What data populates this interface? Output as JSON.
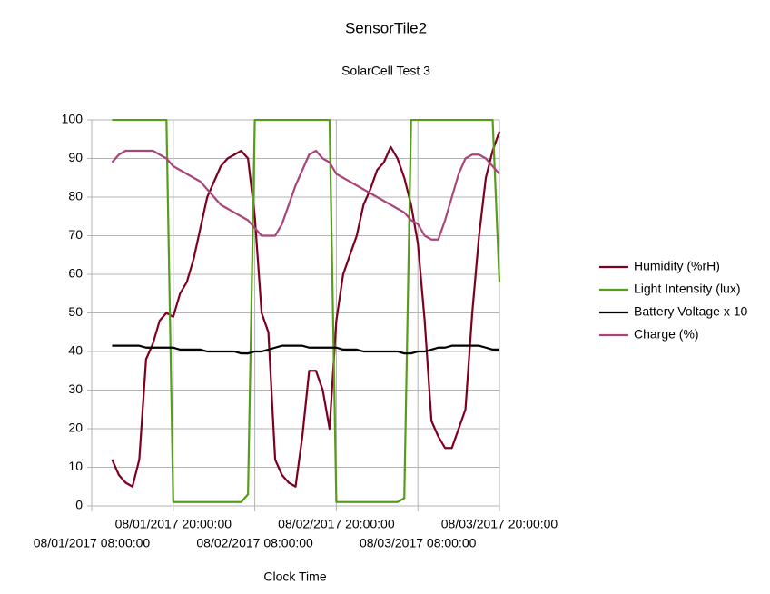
{
  "chart_data": {
    "type": "line",
    "title": "SensorTile2",
    "subtitle": "SolarCell Test 3",
    "x_label": "Clock Time",
    "x": [
      "08/01/2017 11:00:00",
      "08/01/2017 12:00:00",
      "08/01/2017 13:00:00",
      "08/01/2017 14:00:00",
      "08/01/2017 15:00:00",
      "08/01/2017 16:00:00",
      "08/01/2017 17:00:00",
      "08/01/2017 18:00:00",
      "08/01/2017 19:00:00",
      "08/01/2017 20:00:00",
      "08/01/2017 21:00:00",
      "08/01/2017 22:00:00",
      "08/01/2017 23:00:00",
      "08/02/2017 00:00:00",
      "08/02/2017 01:00:00",
      "08/02/2017 02:00:00",
      "08/02/2017 03:00:00",
      "08/02/2017 04:00:00",
      "08/02/2017 05:00:00",
      "08/02/2017 06:00:00",
      "08/02/2017 07:00:00",
      "08/02/2017 08:00:00",
      "08/02/2017 09:00:00",
      "08/02/2017 10:00:00",
      "08/02/2017 11:00:00",
      "08/02/2017 12:00:00",
      "08/02/2017 13:00:00",
      "08/02/2017 14:00:00",
      "08/02/2017 15:00:00",
      "08/02/2017 16:00:00",
      "08/02/2017 17:00:00",
      "08/02/2017 18:00:00",
      "08/02/2017 19:00:00",
      "08/02/2017 20:00:00",
      "08/02/2017 21:00:00",
      "08/02/2017 22:00:00",
      "08/02/2017 23:00:00",
      "08/03/2017 00:00:00",
      "08/03/2017 01:00:00",
      "08/03/2017 02:00:00",
      "08/03/2017 03:00:00",
      "08/03/2017 04:00:00",
      "08/03/2017 05:00:00",
      "08/03/2017 06:00:00",
      "08/03/2017 07:00:00",
      "08/03/2017 08:00:00",
      "08/03/2017 09:00:00",
      "08/03/2017 10:00:00",
      "08/03/2017 11:00:00",
      "08/03/2017 12:00:00",
      "08/03/2017 13:00:00",
      "08/03/2017 14:00:00",
      "08/03/2017 15:00:00",
      "08/03/2017 16:00:00",
      "08/03/2017 17:00:00",
      "08/03/2017 18:00:00",
      "08/03/2017 19:00:00",
      "08/03/2017 20:00:00"
    ],
    "series": [
      {
        "name": "Humidity (%rH)",
        "color": "#7e0021",
        "values": [
          12,
          8,
          6,
          5,
          12,
          38,
          42,
          48,
          50,
          49,
          55,
          58,
          64,
          72,
          80,
          84,
          88,
          90,
          91,
          92,
          90,
          75,
          50,
          45,
          12,
          8,
          6,
          5,
          18,
          35,
          35,
          30,
          20,
          48,
          60,
          65,
          70,
          78,
          82,
          87,
          89,
          93,
          90,
          85,
          78,
          68,
          48,
          22,
          18,
          15,
          15,
          20,
          25,
          50,
          70,
          85,
          92,
          97
        ]
      },
      {
        "name": "Light Intensity (lux)",
        "color": "#579d1c",
        "values": [
          100,
          100,
          100,
          100,
          100,
          100,
          100,
          100,
          100,
          1,
          1,
          1,
          1,
          1,
          1,
          1,
          1,
          1,
          1,
          1,
          3,
          100,
          100,
          100,
          100,
          100,
          100,
          100,
          100,
          100,
          100,
          100,
          100,
          1,
          1,
          1,
          1,
          1,
          1,
          1,
          1,
          1,
          1,
          2,
          100,
          100,
          100,
          100,
          100,
          100,
          100,
          100,
          100,
          100,
          100,
          100,
          100,
          58
        ]
      },
      {
        "name": "Battery Voltage x 10",
        "color": "#000000",
        "values": [
          41.5,
          41.5,
          41.5,
          41.5,
          41.5,
          41,
          41,
          41,
          41,
          41,
          40.5,
          40.5,
          40.5,
          40.5,
          40,
          40,
          40,
          40,
          40,
          39.5,
          39.5,
          40,
          40,
          40.5,
          41,
          41.5,
          41.5,
          41.5,
          41.5,
          41,
          41,
          41,
          41,
          41,
          40.5,
          40.5,
          40.5,
          40,
          40,
          40,
          40,
          40,
          40,
          39.5,
          39.5,
          40,
          40,
          40.5,
          41,
          41,
          41.5,
          41.5,
          41.5,
          41.5,
          41.5,
          41,
          40.5,
          40.5
        ]
      },
      {
        "name": "Charge (%)",
        "color": "#a8457b",
        "values": [
          89,
          91,
          92,
          92,
          92,
          92,
          92,
          91,
          90,
          88,
          87,
          86,
          85,
          84,
          82,
          80,
          78,
          77,
          76,
          75,
          74,
          72,
          70,
          70,
          70,
          73,
          78,
          83,
          87,
          91,
          92,
          90,
          89,
          86,
          85,
          84,
          83,
          82,
          81,
          80,
          79,
          78,
          77,
          76,
          74,
          73,
          70,
          69,
          69,
          74,
          80,
          86,
          90,
          91,
          91,
          90,
          88,
          86
        ]
      }
    ],
    "xlim": [
      "08/01/2017 08:00:00",
      "08/03/2017 20:00:00"
    ],
    "xticks": [
      "08/01/2017 08:00:00",
      "08/01/2017 20:00:00",
      "08/02/2017 08:00:00",
      "08/02/2017 20:00:00",
      "08/03/2017 08:00:00",
      "08/03/2017 20:00:00"
    ],
    "ylim": [
      0,
      100
    ],
    "yticks": [
      0,
      10,
      20,
      30,
      40,
      50,
      60,
      70,
      80,
      90,
      100
    ],
    "grid": true,
    "legend": "right"
  }
}
